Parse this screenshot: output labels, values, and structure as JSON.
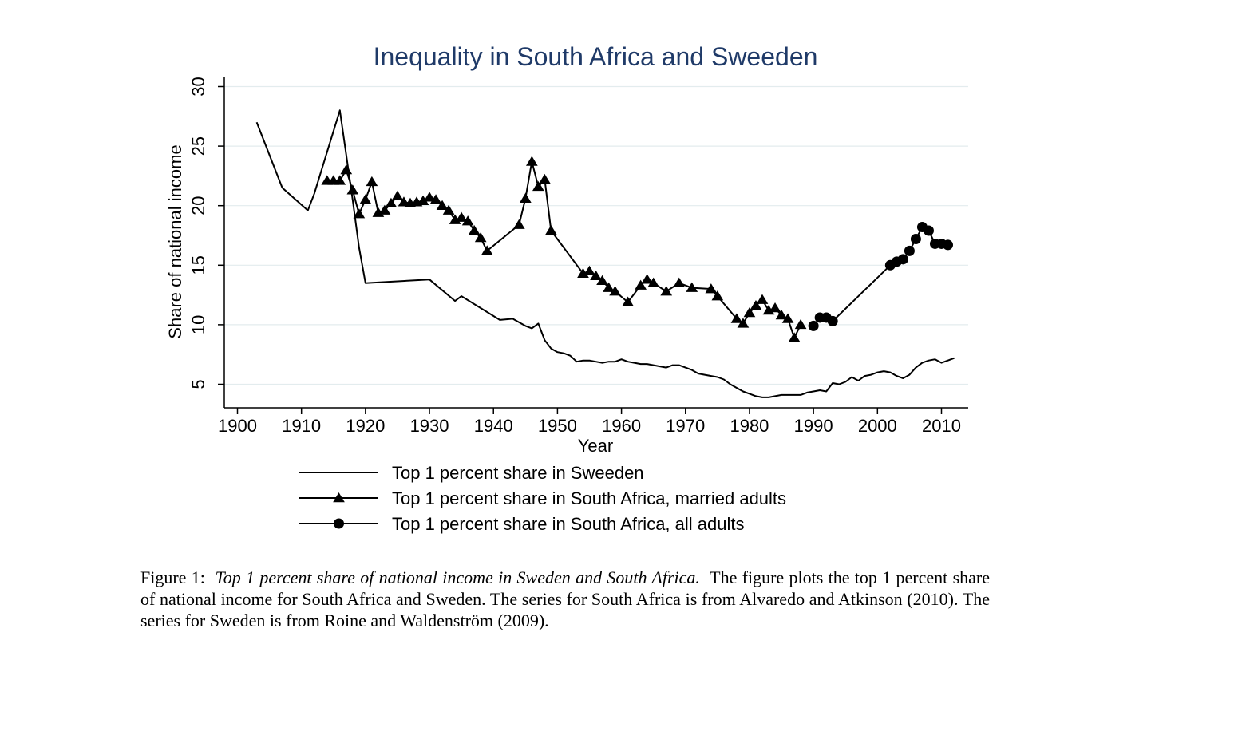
{
  "chart_data": {
    "type": "line",
    "title": "Inequality in South Africa and Sweeden",
    "xlabel": "Year",
    "ylabel": "Share of national income",
    "xlim": [
      1898,
      2016
    ],
    "ylim": [
      3,
      31
    ],
    "xticks": [
      1900,
      1910,
      1920,
      1930,
      1940,
      1950,
      1960,
      1970,
      1980,
      1990,
      2000,
      2010
    ],
    "yticks": [
      5,
      10,
      15,
      20,
      25,
      30
    ],
    "grid": "horizontal",
    "legend_position": "bottom",
    "series": [
      {
        "name": "Top 1 percent share in Sweeden",
        "marker": "none",
        "color": "#000000",
        "x": [
          1903,
          1907,
          1911,
          1912,
          1916,
          1918,
          1919,
          1920,
          1930,
          1934,
          1935,
          1941,
          1943,
          1945,
          1946,
          1947,
          1948,
          1949,
          1950,
          1951,
          1952,
          1953,
          1954,
          1955,
          1956,
          1957,
          1958,
          1959,
          1960,
          1961,
          1962,
          1963,
          1964,
          1965,
          1966,
          1967,
          1968,
          1969,
          1970,
          1971,
          1972,
          1973,
          1974,
          1975,
          1976,
          1977,
          1978,
          1979,
          1980,
          1981,
          1982,
          1983,
          1984,
          1985,
          1986,
          1987,
          1988,
          1989,
          1990,
          1991,
          1992,
          1993,
          1994,
          1995,
          1996,
          1997,
          1998,
          1999,
          2000,
          2001,
          2002,
          2003,
          2004,
          2005,
          2006,
          2007,
          2008,
          2009,
          2010,
          2011,
          2012
        ],
        "values": [
          27.0,
          21.5,
          19.6,
          21.0,
          28.0,
          20.5,
          16.5,
          13.5,
          13.8,
          12.0,
          12.4,
          10.4,
          10.5,
          9.9,
          9.7,
          10.1,
          8.7,
          8.0,
          7.7,
          7.6,
          7.4,
          6.9,
          7.0,
          7.0,
          6.9,
          6.8,
          6.9,
          6.9,
          7.1,
          6.9,
          6.8,
          6.7,
          6.7,
          6.6,
          6.5,
          6.4,
          6.6,
          6.6,
          6.4,
          6.2,
          5.9,
          5.8,
          5.7,
          5.6,
          5.4,
          5.0,
          4.7,
          4.4,
          4.2,
          4.0,
          3.9,
          3.9,
          4.0,
          4.1,
          4.1,
          4.1,
          4.1,
          4.3,
          4.4,
          4.5,
          4.4,
          5.1,
          5.0,
          5.2,
          5.6,
          5.3,
          5.7,
          5.8,
          6.0,
          6.1,
          6.0,
          5.7,
          5.5,
          5.8,
          6.4,
          6.8,
          7.0,
          7.1,
          6.8,
          7.0,
          7.2
        ]
      },
      {
        "name": "Top 1 percent share in South Africa, married adults",
        "marker": "triangle",
        "color": "#000000",
        "x": [
          1914,
          1915,
          1916,
          1917,
          1918,
          1919,
          1920,
          1921,
          1922,
          1923,
          1924,
          1925,
          1926,
          1927,
          1928,
          1929,
          1930,
          1931,
          1932,
          1933,
          1934,
          1935,
          1936,
          1937,
          1938,
          1939,
          1944,
          1945,
          1946,
          1947,
          1948,
          1949,
          1954,
          1955,
          1956,
          1957,
          1958,
          1959,
          1961,
          1963,
          1964,
          1965,
          1967,
          1969,
          1971,
          1974,
          1975,
          1978,
          1979,
          1980,
          1981,
          1982,
          1983,
          1984,
          1985,
          1986,
          1987,
          1988
        ],
        "values": [
          22.1,
          22.1,
          22.1,
          23.0,
          21.3,
          19.3,
          20.5,
          22.0,
          19.4,
          19.6,
          20.2,
          20.8,
          20.3,
          20.2,
          20.3,
          20.4,
          20.7,
          20.5,
          20.0,
          19.6,
          18.8,
          19.0,
          18.7,
          17.9,
          17.3,
          16.2,
          18.4,
          20.6,
          23.7,
          21.6,
          22.2,
          17.9,
          14.3,
          14.5,
          14.1,
          13.7,
          13.1,
          12.8,
          11.9,
          13.3,
          13.8,
          13.5,
          12.8,
          13.5,
          13.1,
          13.0,
          12.4,
          10.5,
          10.1,
          11.0,
          11.6,
          12.1,
          11.2,
          11.4,
          10.8,
          10.5,
          8.9,
          10.0
        ]
      },
      {
        "name": "Top 1 percent share in South Africa, all adults",
        "marker": "circle",
        "color": "#000000",
        "x": [
          1990,
          1991,
          1992,
          1993,
          2002,
          2003,
          2004,
          2005,
          2006,
          2007,
          2008,
          2009,
          2010,
          2011
        ],
        "values": [
          9.9,
          10.6,
          10.6,
          10.3,
          15.0,
          15.3,
          15.5,
          16.2,
          17.2,
          18.2,
          17.9,
          16.8,
          16.8,
          16.7
        ]
      }
    ]
  },
  "caption": {
    "label": "Figure 1:",
    "title": "Top 1 percent share of national income in Sweden and South Africa.",
    "body": "The figure plots the top 1 percent share of national income for South Africa and Sweden. The series for South Africa is from Alvaredo and Atkinson (2010). The series for Sweden is from Roine and Waldenström (2009)."
  }
}
